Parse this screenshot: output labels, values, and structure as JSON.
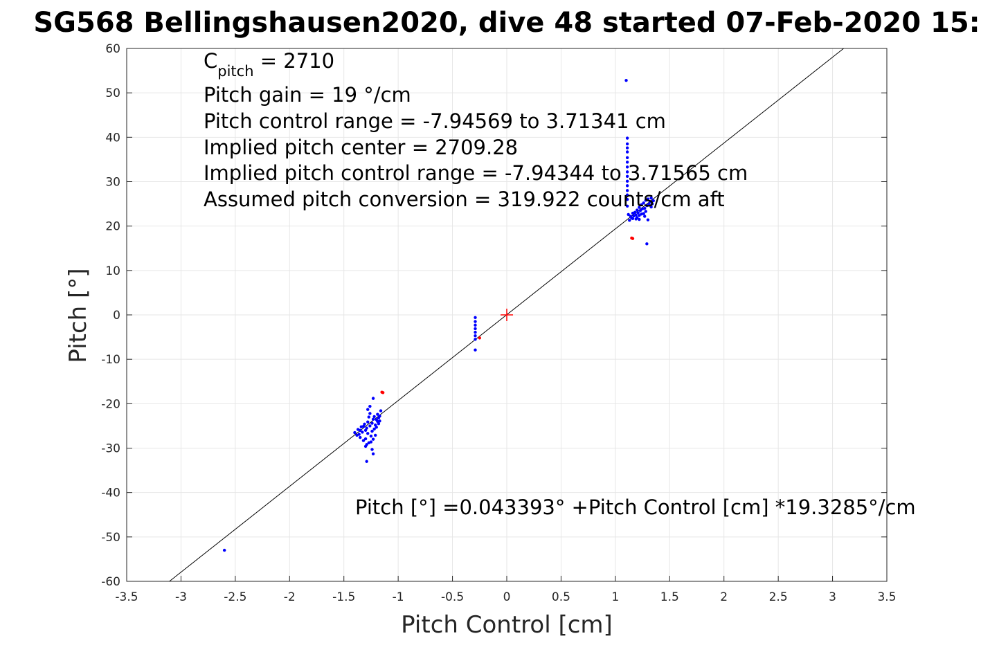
{
  "chart_data": {
    "type": "scatter",
    "title": "SG568 Bellingshausen2020, dive 48 started 07-Feb-2020 15:",
    "xlabel": "Pitch Control [cm]",
    "ylabel": "Pitch [°]",
    "xlim": [
      -3.5,
      3.5
    ],
    "ylim": [
      -60,
      60
    ],
    "xticks": [
      "-3.5",
      "-3",
      "-2.5",
      "-2",
      "-1.5",
      "-1",
      "-0.5",
      "0",
      "0.5",
      "1",
      "1.5",
      "2",
      "2.5",
      "3",
      "3.5"
    ],
    "yticks": [
      "-60",
      "-50",
      "-40",
      "-30",
      "-20",
      "-10",
      "0",
      "10",
      "20",
      "30",
      "40",
      "50",
      "60"
    ],
    "grid": true,
    "colors": {
      "points": "#0000ff",
      "outliers": "#ff0000",
      "fit": "#000000",
      "center": "#ff0000"
    },
    "annotations": {
      "c_pitch_prefix": "C",
      "c_pitch_sub": "pitch",
      "c_pitch_value": " = 2710",
      "lines": [
        "Pitch gain = 19 °/cm",
        "Pitch control range = -7.94569 to 3.71341 cm",
        "Implied pitch center = 2709.28",
        "Implied pitch control range = -7.94344 to 3.71565 cm",
        "Assumed pitch conversion = 319.922 counts/cm aft"
      ],
      "fit_equation": "Pitch [°] =0.043393° +Pitch Control [cm] *19.3285°/cm"
    },
    "fit_line": {
      "intercept": 0.043393,
      "slope": 19.3285
    },
    "center_marker": {
      "x": 0,
      "y": 0
    },
    "series": [
      {
        "color": "#0000ff",
        "points": [
          [
            1.1,
            52.8
          ],
          [
            1.11,
            39.8
          ],
          [
            1.11,
            38.5
          ],
          [
            1.11,
            37.6
          ],
          [
            1.11,
            36.7
          ],
          [
            1.11,
            35.4
          ],
          [
            1.11,
            34.4
          ],
          [
            1.11,
            33.3
          ],
          [
            1.11,
            32.2
          ],
          [
            1.11,
            31.2
          ],
          [
            1.11,
            30.1
          ],
          [
            1.11,
            29.1
          ],
          [
            1.11,
            28.0
          ],
          [
            1.11,
            27.0
          ],
          [
            1.11,
            26.0
          ],
          [
            1.11,
            24.5
          ],
          [
            1.12,
            22.6
          ],
          [
            1.14,
            22.2
          ],
          [
            1.15,
            21.8
          ],
          [
            1.16,
            22.9
          ],
          [
            1.17,
            22.3
          ],
          [
            1.18,
            23.1
          ],
          [
            1.19,
            22.5
          ],
          [
            1.2,
            23.6
          ],
          [
            1.2,
            21.9
          ],
          [
            1.21,
            23.0
          ],
          [
            1.22,
            24.2
          ],
          [
            1.22,
            22.4
          ],
          [
            1.23,
            23.5
          ],
          [
            1.24,
            22.7
          ],
          [
            1.24,
            24.8
          ],
          [
            1.25,
            23.9
          ],
          [
            1.26,
            22.8
          ],
          [
            1.26,
            25.2
          ],
          [
            1.27,
            24.0
          ],
          [
            1.28,
            23.3
          ],
          [
            1.28,
            25.8
          ],
          [
            1.29,
            24.6
          ],
          [
            1.3,
            21.4
          ],
          [
            1.3,
            26.1
          ],
          [
            1.31,
            24.9
          ],
          [
            1.32,
            25.5
          ],
          [
            1.33,
            24.3
          ],
          [
            1.33,
            26.3
          ],
          [
            1.34,
            25.0
          ],
          [
            1.35,
            25.7
          ],
          [
            1.29,
            16.0
          ],
          [
            1.19,
            21.6
          ],
          [
            1.22,
            21.5
          ],
          [
            1.27,
            22.2
          ],
          [
            1.16,
            21.7
          ],
          [
            1.13,
            21.3
          ],
          [
            -0.29,
            -0.6
          ],
          [
            -0.29,
            -1.5
          ],
          [
            -0.29,
            -2.3
          ],
          [
            -0.29,
            -3.1
          ],
          [
            -0.29,
            -3.9
          ],
          [
            -0.29,
            -4.7
          ],
          [
            -0.29,
            -5.5
          ],
          [
            -0.29,
            -7.9
          ],
          [
            -1.4,
            -26.5
          ],
          [
            -1.38,
            -27.1
          ],
          [
            -1.37,
            -25.8
          ],
          [
            -1.36,
            -26.9
          ],
          [
            -1.35,
            -27.6
          ],
          [
            -1.34,
            -25.2
          ],
          [
            -1.33,
            -26.4
          ],
          [
            -1.32,
            -28.3
          ],
          [
            -1.31,
            -24.6
          ],
          [
            -1.3,
            -26.0
          ],
          [
            -1.3,
            -27.9
          ],
          [
            -1.29,
            -25.5
          ],
          [
            -1.28,
            -24.1
          ],
          [
            -1.28,
            -26.7
          ],
          [
            -1.27,
            -28.8
          ],
          [
            -1.26,
            -25.0
          ],
          [
            -1.26,
            -22.2
          ],
          [
            -1.25,
            -27.3
          ],
          [
            -1.24,
            -24.4
          ],
          [
            -1.24,
            -26.2
          ],
          [
            -1.23,
            -23.5
          ],
          [
            -1.23,
            -28.0
          ],
          [
            -1.22,
            -25.7
          ],
          [
            -1.22,
            -22.9
          ],
          [
            -1.21,
            -24.8
          ],
          [
            -1.21,
            -27.1
          ],
          [
            -1.2,
            -23.6
          ],
          [
            -1.2,
            -25.3
          ],
          [
            -1.19,
            -24.0
          ],
          [
            -1.19,
            -22.4
          ],
          [
            -1.18,
            -23.2
          ],
          [
            -1.18,
            -24.5
          ],
          [
            -1.17,
            -22.8
          ],
          [
            -1.17,
            -23.9
          ],
          [
            -1.16,
            -21.6
          ],
          [
            -1.23,
            -18.8
          ],
          [
            -1.26,
            -20.6
          ],
          [
            -1.28,
            -21.3
          ],
          [
            -1.29,
            -29.2
          ],
          [
            -1.29,
            -33.0
          ],
          [
            -1.24,
            -30.3
          ],
          [
            -1.23,
            -31.3
          ],
          [
            -1.3,
            -29.6
          ],
          [
            -1.25,
            -28.6
          ],
          [
            -1.27,
            -23.0
          ],
          [
            -1.32,
            -25.1
          ],
          [
            -1.35,
            -26.0
          ],
          [
            -2.6,
            -53.0
          ]
        ]
      },
      {
        "color": "#ff0000",
        "points": [
          [
            1.15,
            17.3
          ],
          [
            1.16,
            17.2
          ],
          [
            -1.15,
            -17.4
          ],
          [
            -1.14,
            -17.5
          ],
          [
            -0.25,
            -5.2
          ]
        ]
      }
    ]
  }
}
